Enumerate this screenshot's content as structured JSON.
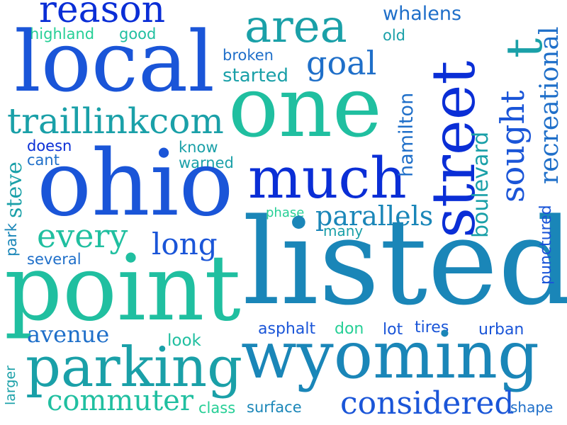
{
  "colors": {
    "deep_blue": "#0a2ed6",
    "royal_blue": "#1a55d8",
    "medium_blue": "#1f6fc9",
    "steel_blue": "#1a86b8",
    "teal": "#1aa0a8",
    "green_teal": "#20bfa0",
    "mint": "#26cf96",
    "background": "#ffffff"
  },
  "words": {
    "reason": "reason",
    "area": "area",
    "whalens": "whalens",
    "t": "t",
    "recreational": "recreational",
    "highland": "highland",
    "good": "good",
    "old": "old",
    "local": "local",
    "broken": "broken",
    "goal": "goal",
    "started": "started",
    "street": "street",
    "sought": "sought",
    "hamilton": "hamilton",
    "one": "one",
    "traillinkcom": "traillinkcom",
    "doesn": "doesn",
    "know": "know",
    "cant": "cant",
    "warned": "warned",
    "boulevard": "boulevard",
    "steve": "steve",
    "ohio": "ohio",
    "much": "much",
    "park": "park",
    "phase": "phase",
    "parallels": "parallels",
    "many": "many",
    "punctured": "punctured",
    "every": "every",
    "long": "long",
    "several": "several",
    "listed": "listed",
    "point": "point",
    "avenue": "avenue",
    "asphalt": "asphalt",
    "don": "don",
    "lot": "lot",
    "tires": "tires",
    "urban": "urban",
    "look": "look",
    "wyoming": "wyoming",
    "larger": "larger",
    "parking": "parking",
    "commuter": "commuter",
    "class": "class",
    "surface": "surface",
    "considered": "considered",
    "shape": "shape"
  }
}
